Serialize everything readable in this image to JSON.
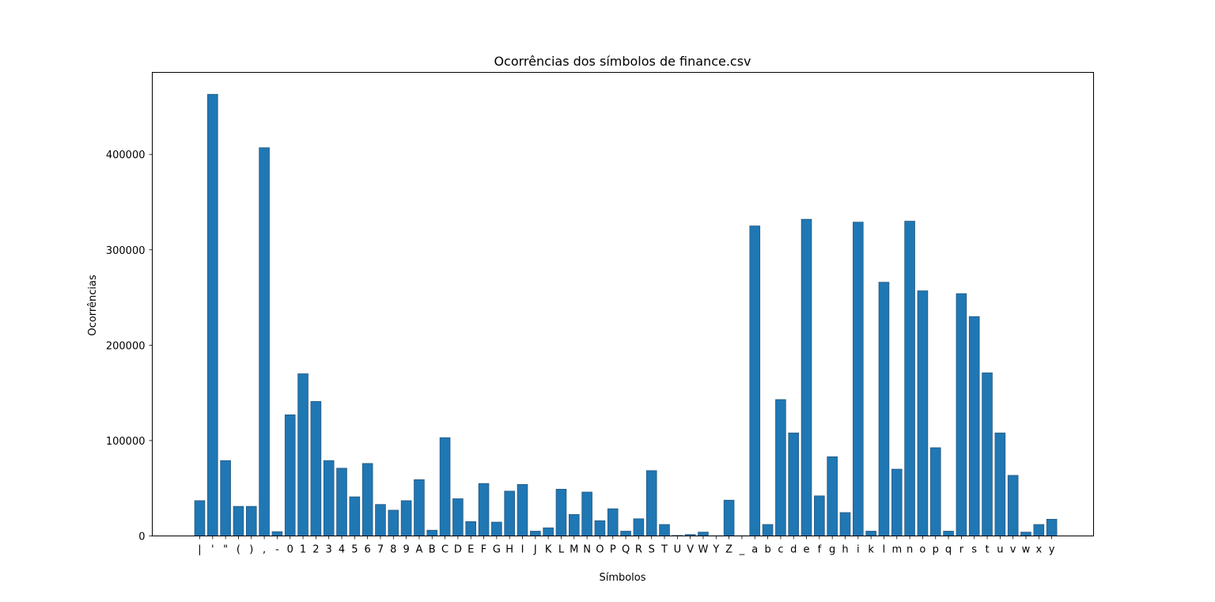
{
  "chart_data": {
    "type": "bar",
    "title": "Ocorrências dos símbolos de finance.csv",
    "xlabel": "Símbolos",
    "ylabel": "Ocorrências",
    "ylim": [
      0,
      486000
    ],
    "yticks": [
      0,
      100000,
      200000,
      300000,
      400000
    ],
    "ytick_labels": [
      "0",
      "100000",
      "200000",
      "300000",
      "400000"
    ],
    "grid": false,
    "legend": "none",
    "bar_color": "#1f77b4",
    "bar_edge_color": "#2a5a7f",
    "categories": [
      "",
      "",
      "\"",
      "(",
      ")",
      ",",
      "-",
      "0",
      "1",
      "2",
      "3",
      "4",
      "5",
      "6",
      "7",
      "8",
      "9",
      "A",
      "B",
      "C",
      "D",
      "E",
      "F",
      "G",
      "H",
      "I",
      "J",
      "K",
      "L",
      "M",
      "N",
      "O",
      "P",
      "Q",
      "R",
      "S",
      "T",
      "U",
      "V",
      "W",
      "Y",
      "Z",
      "_",
      "a",
      "b",
      "c",
      "d",
      "e",
      "f",
      "g",
      "h",
      "i",
      "k",
      "l",
      "m",
      "n",
      "o",
      "p",
      "q",
      "r",
      "s",
      "t",
      "u",
      "v",
      "w",
      "x",
      "y"
    ],
    "tick_labels": [
      "|",
      "'",
      "\"",
      "(",
      ")",
      ",",
      "-",
      "0",
      "1",
      "2",
      "3",
      "4",
      "5",
      "6",
      "7",
      "8",
      "9",
      "A",
      "B",
      "C",
      "D",
      "E",
      "F",
      "G",
      "H",
      "I",
      "J",
      "K",
      "L",
      "M",
      "N",
      "O",
      "P",
      "Q",
      "R",
      "S",
      "T",
      "U",
      "V",
      "W",
      "Y",
      "Z",
      "_",
      "a",
      "b",
      "c",
      "d",
      "e",
      "f",
      "g",
      "h",
      "i",
      "k",
      "l",
      "m",
      "n",
      "o",
      "p",
      "q",
      "r",
      "s",
      "t",
      "u",
      "v",
      "w",
      "x",
      "y"
    ],
    "values": [
      37000,
      463000,
      79000,
      31000,
      31000,
      407000,
      4500,
      127000,
      170000,
      141000,
      79000,
      71000,
      41000,
      76000,
      33000,
      27000,
      37000,
      59000,
      6000,
      103000,
      39000,
      15000,
      55000,
      14500,
      47000,
      54000,
      5000,
      8500,
      49000,
      22500,
      46000,
      16000,
      28500,
      5000,
      18000,
      68500,
      12000,
      500,
      1500,
      4000,
      200,
      37500,
      200,
      325000,
      12000,
      143000,
      108000,
      332000,
      42000,
      83000,
      24500,
      329000,
      5000,
      266000,
      70000,
      330000,
      257000,
      92500,
      5000,
      254000,
      230000,
      171000,
      108000,
      63500,
      4000,
      12000,
      17500
    ]
  }
}
